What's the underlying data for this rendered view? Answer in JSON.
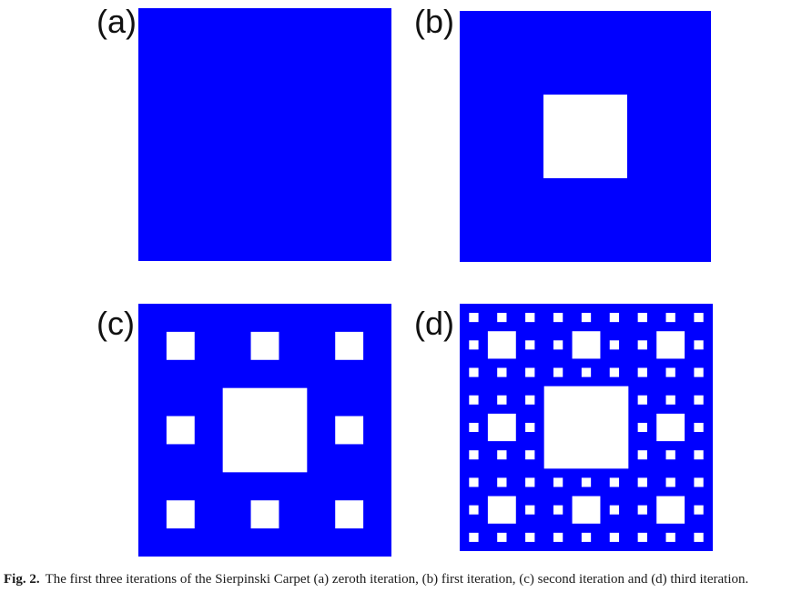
{
  "figure": {
    "panels": [
      {
        "id": "a",
        "label": "(a)",
        "iteration": 0
      },
      {
        "id": "b",
        "label": "(b)",
        "iteration": 1
      },
      {
        "id": "c",
        "label": "(c)",
        "iteration": 2
      },
      {
        "id": "d",
        "label": "(d)",
        "iteration": 3
      }
    ],
    "fill_color": "#0000ff",
    "hole_color": "#ffffff"
  },
  "caption": {
    "label": "Fig. 2.",
    "text": "The first three iterations of the Sierpinski Carpet (a) zeroth iteration, (b) first iteration, (c) second iteration and (d) third iteration."
  }
}
